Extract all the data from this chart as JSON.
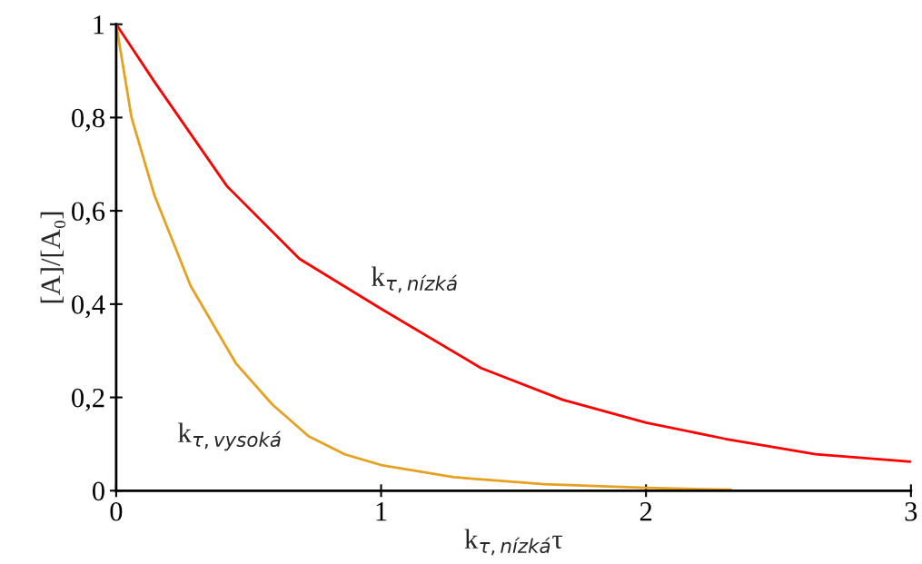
{
  "chart_data": {
    "type": "line",
    "xlabel": "k$_{τ,nízká}$τ",
    "ylabel": "[A]/[A₀]",
    "xlim": [
      0,
      3
    ],
    "ylim": [
      0,
      1
    ],
    "xticks": [
      0,
      1,
      2,
      3
    ],
    "yticks": [
      0,
      {
        "value": 0.2,
        "label": "0,2"
      },
      {
        "value": 0.4,
        "label": "0,4"
      },
      {
        "value": 0.6,
        "label": "0,6"
      },
      {
        "value": 0.8,
        "label": "0,8"
      },
      1
    ],
    "grid": false,
    "legend": false,
    "marker": "none",
    "line_style": "solid",
    "series": [
      {
        "name": "k$_{τ,nízká}$",
        "color": "#ff0000",
        "x": [
          0,
          0.144,
          0.418,
          0.692,
          1.0,
          1.377,
          1.685,
          2.0,
          2.3,
          2.64,
          3.0
        ],
        "values": [
          1.0,
          0.877,
          0.653,
          0.497,
          0.39,
          0.263,
          0.195,
          0.146,
          0.111,
          0.078,
          0.062
        ]
      },
      {
        "name": "k$_{τ,vysoká}$",
        "color": "#e8a020",
        "x": [
          0,
          0.058,
          0.144,
          0.281,
          0.452,
          0.589,
          0.726,
          0.863,
          1.0,
          1.274,
          1.616,
          2.0,
          2.32
        ],
        "values": [
          1.0,
          0.8,
          0.634,
          0.439,
          0.273,
          0.185,
          0.117,
          0.078,
          0.055,
          0.029,
          0.014,
          0.006,
          0.002
        ]
      }
    ]
  }
}
